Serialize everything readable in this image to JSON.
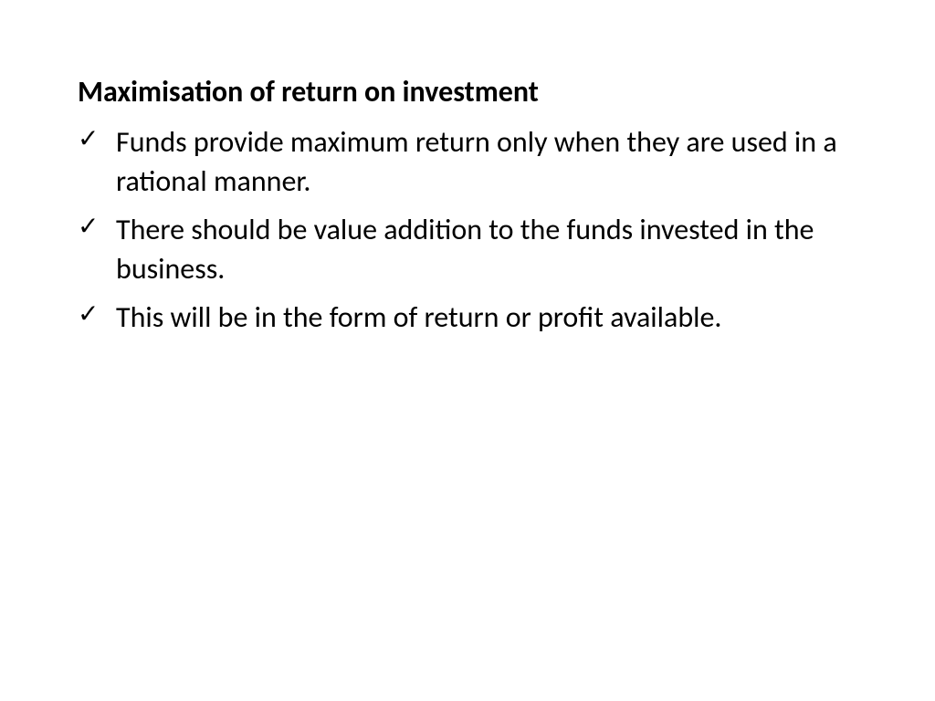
{
  "slide": {
    "title": "Maximisation of return on investment",
    "bullets": [
      "Funds provide maximum return only when they are used in a rational manner.",
      "There should be value addition to the funds invested in the business.",
      "This will be in the form of return or profit available."
    ],
    "title_fontsize": 32,
    "body_fontsize": 32,
    "title_weight": "bold",
    "text_color": "#000000",
    "background_color": "#ffffff",
    "check_mark": "✓"
  }
}
